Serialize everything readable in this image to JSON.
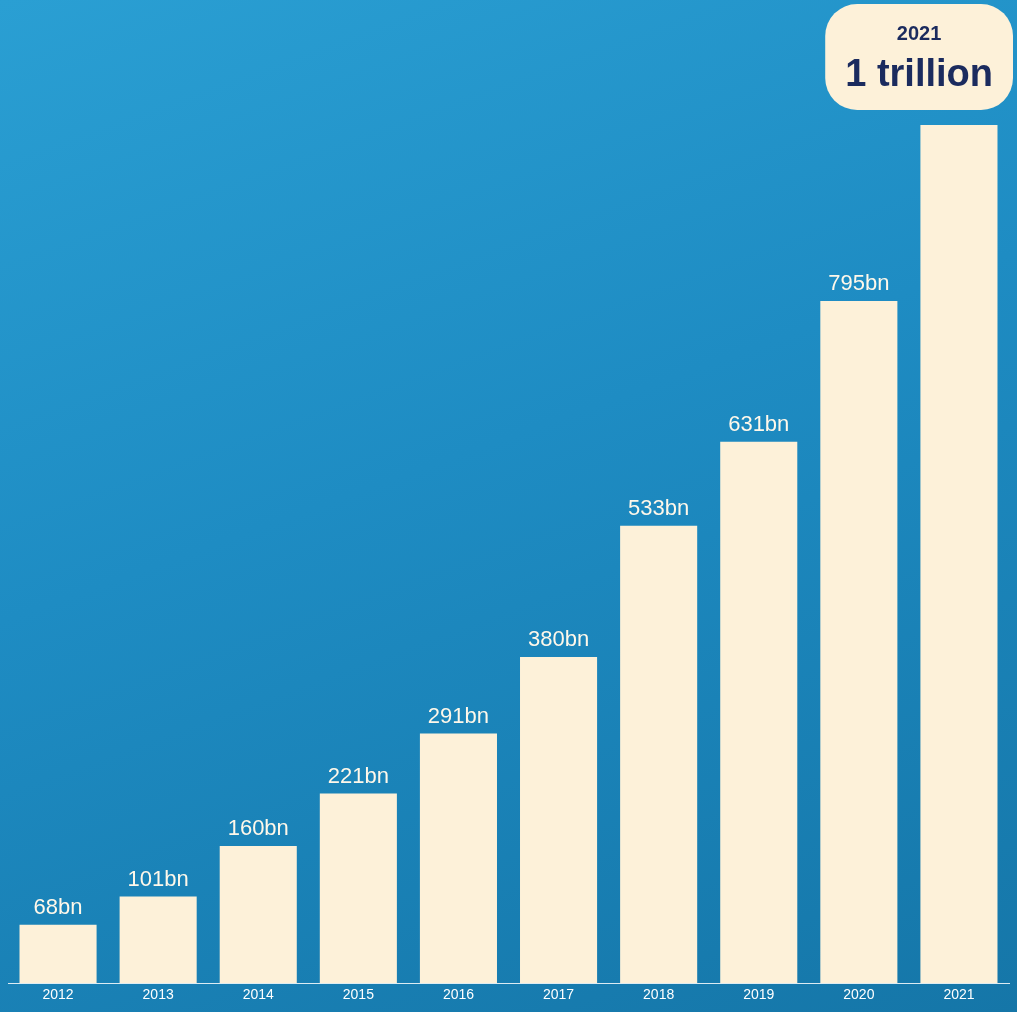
{
  "chart_data": {
    "type": "bar",
    "categories": [
      "2012",
      "2013",
      "2014",
      "2015",
      "2016",
      "2017",
      "2018",
      "2019",
      "2020",
      "2021"
    ],
    "values": [
      68,
      101,
      160,
      221,
      291,
      380,
      533,
      631,
      795,
      1000
    ],
    "value_labels": [
      "68bn",
      "101bn",
      "160bn",
      "221bn",
      "291bn",
      "380bn",
      "533bn",
      "631bn",
      "795bn",
      "1 trillion"
    ],
    "color": "#fdf1d9",
    "ylim": [
      0,
      1000
    ],
    "grid": false,
    "data_labels": true,
    "tick_labels": "x"
  }
}
